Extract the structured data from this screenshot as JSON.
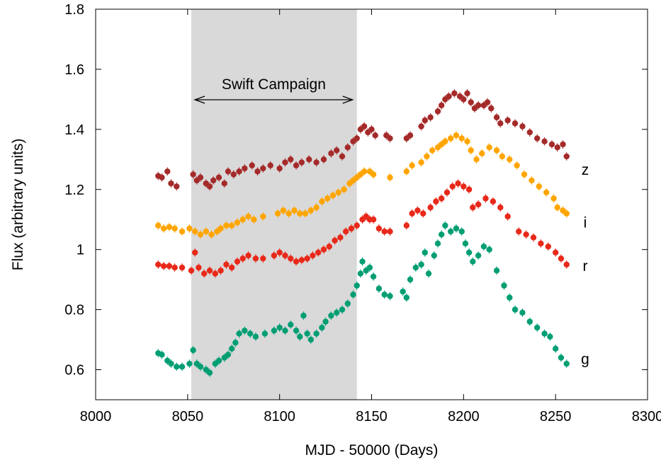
{
  "chart_data": {
    "type": "scatter",
    "xlabel": "MJD - 50000 (Days)",
    "ylabel": "Flux (arbitrary units)",
    "xlim": [
      8000,
      8300
    ],
    "ylim": [
      0.5,
      1.8
    ],
    "xticks": [
      "8000",
      "8050",
      "8100",
      "8150",
      "8200",
      "8250",
      "8300"
    ],
    "yticks": [
      "0.6",
      "0.8",
      "1",
      "1.2",
      "1.4",
      "1.6",
      "1.8"
    ],
    "grid": false,
    "shaded_region": {
      "x_start": 8052,
      "x_end": 8142,
      "label": "Swift Campaign",
      "color": "#d9d9d9"
    },
    "series": [
      {
        "name": "z",
        "color": "#a52a2a",
        "points": [
          [
            8034,
            1.245
          ],
          [
            8036,
            1.24
          ],
          [
            8039,
            1.26
          ],
          [
            8041,
            1.22
          ],
          [
            8044,
            1.21
          ],
          [
            8053,
            1.25
          ],
          [
            8055,
            1.23
          ],
          [
            8057,
            1.24
          ],
          [
            8060,
            1.22
          ],
          [
            8062,
            1.21
          ],
          [
            8064,
            1.23
          ],
          [
            8067,
            1.24
          ],
          [
            8070,
            1.22
          ],
          [
            8072,
            1.26
          ],
          [
            8075,
            1.25
          ],
          [
            8078,
            1.26
          ],
          [
            8081,
            1.27
          ],
          [
            8085,
            1.28
          ],
          [
            8088,
            1.26
          ],
          [
            8091,
            1.27
          ],
          [
            8095,
            1.28
          ],
          [
            8100,
            1.27
          ],
          [
            8103,
            1.29
          ],
          [
            8106,
            1.3
          ],
          [
            8109,
            1.28
          ],
          [
            8112,
            1.29
          ],
          [
            8116,
            1.3
          ],
          [
            8120,
            1.29
          ],
          [
            8124,
            1.3
          ],
          [
            8128,
            1.32
          ],
          [
            8131,
            1.33
          ],
          [
            8134,
            1.31
          ],
          [
            8137,
            1.34
          ],
          [
            8140,
            1.36
          ],
          [
            8142,
            1.37
          ],
          [
            8144,
            1.4
          ],
          [
            8146,
            1.41
          ],
          [
            8148,
            1.39
          ],
          [
            8150,
            1.4
          ],
          [
            8152,
            1.38
          ],
          [
            8158,
            1.38
          ],
          [
            8160,
            1.37
          ],
          [
            8169,
            1.37
          ],
          [
            8171,
            1.38
          ],
          [
            8177,
            1.41
          ],
          [
            8179,
            1.43
          ],
          [
            8182,
            1.44
          ],
          [
            8186,
            1.46
          ],
          [
            8188,
            1.48
          ],
          [
            8190,
            1.5
          ],
          [
            8192,
            1.51
          ],
          [
            8195,
            1.52
          ],
          [
            8198,
            1.51
          ],
          [
            8200,
            1.5
          ],
          [
            8202,
            1.52
          ],
          [
            8204,
            1.49
          ],
          [
            8206,
            1.47
          ],
          [
            8208,
            1.48
          ],
          [
            8211,
            1.48
          ],
          [
            8213,
            1.49
          ],
          [
            8215,
            1.47
          ],
          [
            8218,
            1.44
          ],
          [
            8220,
            1.42
          ],
          [
            8224,
            1.43
          ],
          [
            8228,
            1.42
          ],
          [
            8232,
            1.41
          ],
          [
            8236,
            1.39
          ],
          [
            8240,
            1.37
          ],
          [
            8244,
            1.36
          ],
          [
            8248,
            1.35
          ],
          [
            8251,
            1.34
          ],
          [
            8254,
            1.35
          ],
          [
            8256,
            1.31
          ]
        ]
      },
      {
        "name": "i",
        "color": "#ffa500",
        "points": [
          [
            8034,
            1.08
          ],
          [
            8037,
            1.07
          ],
          [
            8040,
            1.075
          ],
          [
            8043,
            1.07
          ],
          [
            8047,
            1.06
          ],
          [
            8051,
            1.07
          ],
          [
            8054,
            1.06
          ],
          [
            8057,
            1.05
          ],
          [
            8060,
            1.06
          ],
          [
            8063,
            1.05
          ],
          [
            8066,
            1.06
          ],
          [
            8068,
            1.07
          ],
          [
            8071,
            1.08
          ],
          [
            8074,
            1.08
          ],
          [
            8077,
            1.09
          ],
          [
            8080,
            1.1
          ],
          [
            8083,
            1.11
          ],
          [
            8086,
            1.1
          ],
          [
            8091,
            1.11
          ],
          [
            8099,
            1.12
          ],
          [
            8102,
            1.13
          ],
          [
            8105,
            1.12
          ],
          [
            8108,
            1.13
          ],
          [
            8111,
            1.12
          ],
          [
            8114,
            1.12
          ],
          [
            8117,
            1.13
          ],
          [
            8120,
            1.14
          ],
          [
            8123,
            1.16
          ],
          [
            8126,
            1.17
          ],
          [
            8129,
            1.18
          ],
          [
            8132,
            1.19
          ],
          [
            8135,
            1.2
          ],
          [
            8138,
            1.22
          ],
          [
            8140,
            1.23
          ],
          [
            8142,
            1.24
          ],
          [
            8144,
            1.25
          ],
          [
            8146,
            1.26
          ],
          [
            8149,
            1.26
          ],
          [
            8151,
            1.25
          ],
          [
            8160,
            1.24
          ],
          [
            8169,
            1.26
          ],
          [
            8172,
            1.28
          ],
          [
            8177,
            1.29
          ],
          [
            8180,
            1.31
          ],
          [
            8183,
            1.33
          ],
          [
            8186,
            1.34
          ],
          [
            8188,
            1.35
          ],
          [
            8190,
            1.36
          ],
          [
            8193,
            1.37
          ],
          [
            8196,
            1.38
          ],
          [
            8199,
            1.37
          ],
          [
            8202,
            1.36
          ],
          [
            8204,
            1.33
          ],
          [
            8207,
            1.3
          ],
          [
            8210,
            1.32
          ],
          [
            8214,
            1.34
          ],
          [
            8218,
            1.33
          ],
          [
            8221,
            1.31
          ],
          [
            8225,
            1.3
          ],
          [
            8229,
            1.28
          ],
          [
            8233,
            1.25
          ],
          [
            8237,
            1.23
          ],
          [
            8241,
            1.21
          ],
          [
            8245,
            1.19
          ],
          [
            8249,
            1.17
          ],
          [
            8251,
            1.14
          ],
          [
            8254,
            1.13
          ],
          [
            8256,
            1.12
          ]
        ]
      },
      {
        "name": "r",
        "color": "#e8291a",
        "points": [
          [
            8034,
            0.95
          ],
          [
            8037,
            0.945
          ],
          [
            8040,
            0.945
          ],
          [
            8043,
            0.94
          ],
          [
            8047,
            0.94
          ],
          [
            8052,
            0.93
          ],
          [
            8054,
            0.99
          ],
          [
            8056,
            0.94
          ],
          [
            8059,
            0.92
          ],
          [
            8062,
            0.93
          ],
          [
            8065,
            0.92
          ],
          [
            8068,
            0.93
          ],
          [
            8071,
            0.95
          ],
          [
            8074,
            0.94
          ],
          [
            8077,
            0.96
          ],
          [
            8080,
            0.97
          ],
          [
            8083,
            0.98
          ],
          [
            8087,
            0.97
          ],
          [
            8091,
            0.97
          ],
          [
            8097,
            0.98
          ],
          [
            8100,
            0.99
          ],
          [
            8103,
            0.98
          ],
          [
            8106,
            0.97
          ],
          [
            8109,
            0.96
          ],
          [
            8112,
            0.965
          ],
          [
            8115,
            0.97
          ],
          [
            8118,
            0.98
          ],
          [
            8121,
            0.99
          ],
          [
            8124,
            1.0
          ],
          [
            8127,
            1.01
          ],
          [
            8130,
            1.03
          ],
          [
            8133,
            1.04
          ],
          [
            8136,
            1.06
          ],
          [
            8139,
            1.07
          ],
          [
            8142,
            1.08
          ],
          [
            8145,
            1.1
          ],
          [
            8147,
            1.11
          ],
          [
            8149,
            1.1
          ],
          [
            8151,
            1.1
          ],
          [
            8154,
            1.07
          ],
          [
            8157,
            1.06
          ],
          [
            8160,
            1.06
          ],
          [
            8169,
            1.08
          ],
          [
            8172,
            1.12
          ],
          [
            8175,
            1.13
          ],
          [
            8178,
            1.12
          ],
          [
            8182,
            1.14
          ],
          [
            8185,
            1.16
          ],
          [
            8188,
            1.17
          ],
          [
            8191,
            1.19
          ],
          [
            8194,
            1.21
          ],
          [
            8197,
            1.22
          ],
          [
            8200,
            1.21
          ],
          [
            8203,
            1.2
          ],
          [
            8205,
            1.14
          ],
          [
            8208,
            1.15
          ],
          [
            8212,
            1.17
          ],
          [
            8216,
            1.16
          ],
          [
            8220,
            1.14
          ],
          [
            8224,
            1.11
          ],
          [
            8230,
            1.06
          ],
          [
            8234,
            1.05
          ],
          [
            8238,
            1.04
          ],
          [
            8242,
            1.02
          ],
          [
            8246,
            1.01
          ],
          [
            8250,
            0.99
          ],
          [
            8253,
            0.97
          ],
          [
            8256,
            0.95
          ]
        ]
      },
      {
        "name": "g",
        "color": "#009e73",
        "points": [
          [
            8034,
            0.655
          ],
          [
            8036,
            0.65
          ],
          [
            8039,
            0.63
          ],
          [
            8041,
            0.62
          ],
          [
            8044,
            0.61
          ],
          [
            8047,
            0.61
          ],
          [
            8051,
            0.62
          ],
          [
            8053,
            0.665
          ],
          [
            8055,
            0.62
          ],
          [
            8057,
            0.61
          ],
          [
            8060,
            0.6
          ],
          [
            8062,
            0.59
          ],
          [
            8065,
            0.62
          ],
          [
            8067,
            0.63
          ],
          [
            8070,
            0.64
          ],
          [
            8072,
            0.65
          ],
          [
            8074,
            0.67
          ],
          [
            8076,
            0.69
          ],
          [
            8078,
            0.72
          ],
          [
            8081,
            0.73
          ],
          [
            8084,
            0.72
          ],
          [
            8087,
            0.71
          ],
          [
            8092,
            0.72
          ],
          [
            8097,
            0.73
          ],
          [
            8100,
            0.74
          ],
          [
            8103,
            0.73
          ],
          [
            8106,
            0.75
          ],
          [
            8109,
            0.73
          ],
          [
            8111,
            0.71
          ],
          [
            8113,
            0.78
          ],
          [
            8115,
            0.72
          ],
          [
            8117,
            0.7
          ],
          [
            8120,
            0.72
          ],
          [
            8123,
            0.74
          ],
          [
            8125,
            0.76
          ],
          [
            8128,
            0.78
          ],
          [
            8131,
            0.79
          ],
          [
            8134,
            0.8
          ],
          [
            8137,
            0.82
          ],
          [
            8140,
            0.85
          ],
          [
            8142,
            0.88
          ],
          [
            8144,
            0.92
          ],
          [
            8145,
            0.96
          ],
          [
            8147,
            0.93
          ],
          [
            8149,
            0.94
          ],
          [
            8151,
            0.91
          ],
          [
            8154,
            0.87
          ],
          [
            8157,
            0.85
          ],
          [
            8160,
            0.845
          ],
          [
            8167,
            0.86
          ],
          [
            8169,
            0.84
          ],
          [
            8171,
            0.9
          ],
          [
            8174,
            0.94
          ],
          [
            8177,
            0.95
          ],
          [
            8179,
            0.99
          ],
          [
            8181,
            0.92
          ],
          [
            8184,
            0.98
          ],
          [
            8186,
            1.02
          ],
          [
            8188,
            1.05
          ],
          [
            8190,
            1.08
          ],
          [
            8193,
            1.06
          ],
          [
            8196,
            1.07
          ],
          [
            8199,
            1.06
          ],
          [
            8201,
            1.02
          ],
          [
            8203,
            0.99
          ],
          [
            8205,
            0.96
          ],
          [
            8208,
            0.98
          ],
          [
            8211,
            1.01
          ],
          [
            8214,
            1.0
          ],
          [
            8218,
            0.93
          ],
          [
            8222,
            0.88
          ],
          [
            8225,
            0.84
          ],
          [
            8228,
            0.8
          ],
          [
            8232,
            0.79
          ],
          [
            8236,
            0.76
          ],
          [
            8240,
            0.74
          ],
          [
            8244,
            0.72
          ],
          [
            8247,
            0.71
          ],
          [
            8250,
            0.67
          ],
          [
            8253,
            0.64
          ],
          [
            8256,
            0.62
          ]
        ]
      }
    ]
  }
}
